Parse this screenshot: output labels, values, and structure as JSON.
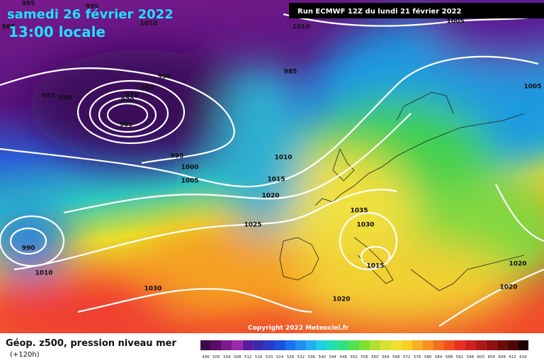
{
  "title": "samedi 26 février 2022",
  "subtitle": "13:00 locale",
  "run_label": "Run ECMWF 12Z du lundi 21 février 2022",
  "copyright": "Copyright 2022 Meteociel.fr",
  "legend": {
    "title": "Géop. z500, pression niveau mer",
    "range": "(+120h)",
    "colorbar": {
      "labels": [
        496,
        500,
        504,
        508,
        512,
        516,
        520,
        524,
        528,
        532,
        536,
        540,
        544,
        548,
        552,
        556,
        560,
        564,
        568,
        572,
        576,
        580,
        584,
        588,
        592,
        596,
        600,
        604,
        608,
        612,
        616
      ],
      "colors": [
        "#3a0a4a",
        "#5a0a6a",
        "#7a1a8a",
        "#9a2aaa",
        "#5a1d9a",
        "#3a2ab0",
        "#2a3ac8",
        "#1a50e0",
        "#1a70f0",
        "#2090f0",
        "#20b0f0",
        "#20d0e0",
        "#20e0b0",
        "#30e080",
        "#50e050",
        "#80e030",
        "#b0e030",
        "#d8e030",
        "#f0e030",
        "#f8d020",
        "#f8b020",
        "#f89020",
        "#f07020",
        "#f05020",
        "#e83020",
        "#d02020",
        "#b01818",
        "#901010",
        "#700a0a",
        "#500505",
        "#200000"
      ]
    }
  },
  "isobar_labels": [
    995,
    995,
    1010,
    1010,
    1005,
    985,
    990,
    985,
    985,
    975,
    970,
    985,
    980,
    960,
    1005,
    995,
    1000,
    1005,
    1010,
    1015,
    1020,
    1035,
    1030,
    1025,
    990,
    1010,
    1015,
    1020,
    1030,
    1020,
    1020
  ]
}
